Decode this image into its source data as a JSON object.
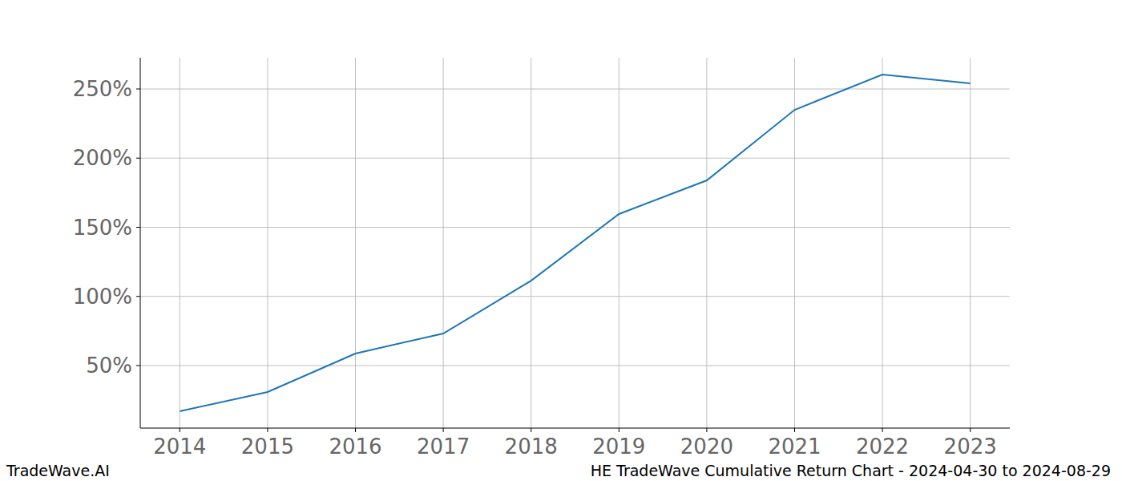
{
  "chart_data": {
    "type": "line",
    "title": "HE TradeWave Cumulative Return Chart - 2024-04-30 to 2024-08-29",
    "annotations": [
      "TradeWave.AI"
    ],
    "x": [
      2014,
      2015,
      2016,
      2017,
      2018,
      2019,
      2020,
      2021,
      2022,
      2023
    ],
    "values": [
      17,
      30.9,
      58.7,
      73.2,
      111.4,
      159.6,
      183.9,
      234.9,
      260.4,
      254
    ],
    "color": "#1f77b4",
    "xlim": [
      2013.55,
      2023.45
    ],
    "xticks": [
      2014,
      2015,
      2016,
      2017,
      2018,
      2019,
      2020,
      2021,
      2022,
      2023
    ],
    "ylim": [
      4.8,
      272.6
    ],
    "yticks": [
      {
        "value": 50,
        "label": "50%"
      },
      {
        "value": 100,
        "label": "100%"
      },
      {
        "value": 150,
        "label": "150%"
      },
      {
        "value": 200,
        "label": "200%"
      },
      {
        "value": 250,
        "label": "250%"
      }
    ],
    "grid": true
  }
}
